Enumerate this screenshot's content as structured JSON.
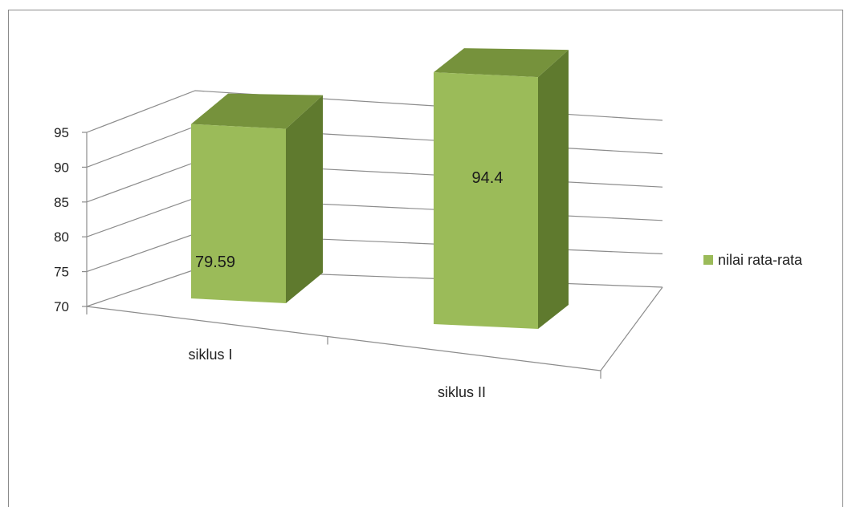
{
  "chart_data": {
    "type": "bar",
    "categories": [
      "siklus I",
      "siklus II"
    ],
    "series": [
      {
        "name": "nilai rata-rata",
        "values": [
          79.59,
          94.4
        ]
      }
    ],
    "data_labels": [
      "79.59",
      "94.4"
    ],
    "ylim": [
      70,
      95
    ],
    "y_ticks": [
      70,
      75,
      80,
      85,
      90,
      95
    ],
    "grid": true,
    "legend_position": "right",
    "style": "3d-column"
  },
  "legend": {
    "label": "nilai rata-rata",
    "color": "#9bbb59"
  },
  "colors": {
    "front": "#9bbb59",
    "top": "#76923c",
    "side": "#5f7a2e",
    "grid": "#8c8c8c"
  }
}
